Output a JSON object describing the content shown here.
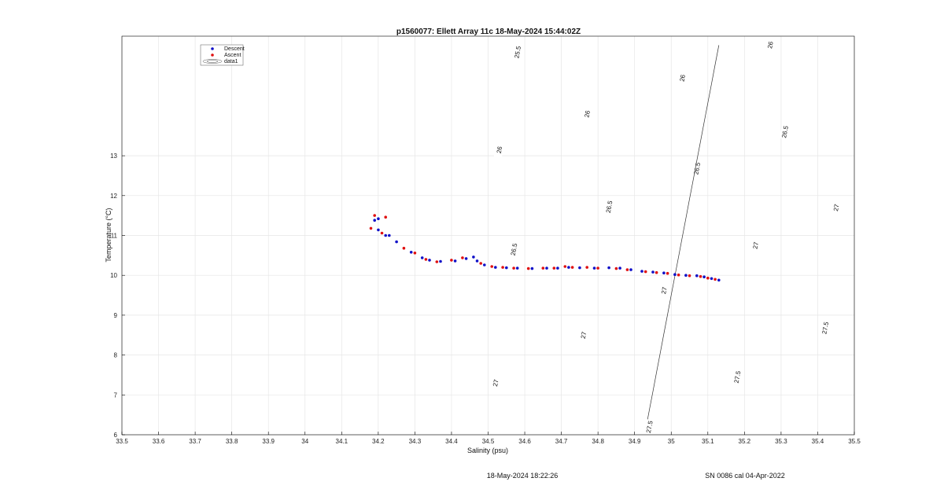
{
  "chart_data": {
    "type": "scatter",
    "title": "p1560077: Ellett Array 11c 18-May-2024 15:44:02Z",
    "xlabel": "Salinity (psu)",
    "ylabel": "Temperature (°C)",
    "xlim": [
      33.5,
      35.5
    ],
    "ylim": [
      6,
      16
    ],
    "x_ticks": [
      "33.5",
      "33.6",
      "33.7",
      "33.8",
      "33.9",
      "34",
      "34.1",
      "34.2",
      "34.3",
      "34.4",
      "34.5",
      "34.6",
      "34.7",
      "34.8",
      "34.9",
      "35",
      "35.1",
      "35.2",
      "35.3",
      "35.4",
      "35.5"
    ],
    "y_ticks": [
      "6",
      "7",
      "8",
      "9",
      "10",
      "11",
      "12",
      "13"
    ],
    "grid": true,
    "legend_position": "top-left",
    "legend": [
      "Descent",
      "Ascent",
      "data1"
    ],
    "colors": {
      "descent": "#1010c8",
      "ascent": "#e01010",
      "contour": "#333333",
      "grid": "#e6e6e6"
    },
    "series": [
      {
        "name": "Descent",
        "points": [
          [
            34.19,
            11.38
          ],
          [
            34.2,
            11.42
          ],
          [
            34.2,
            11.14
          ],
          [
            34.22,
            11.0
          ],
          [
            34.23,
            11.0
          ],
          [
            34.25,
            10.84
          ],
          [
            34.29,
            10.58
          ],
          [
            34.32,
            10.44
          ],
          [
            34.34,
            10.38
          ],
          [
            34.37,
            10.35
          ],
          [
            34.41,
            10.36
          ],
          [
            34.44,
            10.42
          ],
          [
            34.46,
            10.46
          ],
          [
            34.47,
            10.36
          ],
          [
            34.49,
            10.26
          ],
          [
            34.52,
            10.2
          ],
          [
            34.55,
            10.19
          ],
          [
            34.58,
            10.18
          ],
          [
            34.62,
            10.17
          ],
          [
            34.66,
            10.18
          ],
          [
            34.69,
            10.18
          ],
          [
            34.72,
            10.2
          ],
          [
            34.75,
            10.19
          ],
          [
            34.79,
            10.18
          ],
          [
            34.83,
            10.19
          ],
          [
            34.86,
            10.18
          ],
          [
            34.89,
            10.14
          ],
          [
            34.92,
            10.1
          ],
          [
            34.95,
            10.08
          ],
          [
            34.98,
            10.06
          ],
          [
            35.01,
            10.02
          ],
          [
            35.04,
            10.0
          ],
          [
            35.07,
            9.99
          ],
          [
            35.09,
            9.96
          ],
          [
            35.11,
            9.92
          ],
          [
            35.13,
            9.88
          ]
        ]
      },
      {
        "name": "Ascent",
        "points": [
          [
            34.18,
            11.18
          ],
          [
            34.19,
            11.5
          ],
          [
            34.21,
            11.06
          ],
          [
            34.22,
            11.46
          ],
          [
            34.27,
            10.68
          ],
          [
            34.3,
            10.56
          ],
          [
            34.33,
            10.4
          ],
          [
            34.36,
            10.34
          ],
          [
            34.4,
            10.38
          ],
          [
            34.43,
            10.44
          ],
          [
            34.48,
            10.3
          ],
          [
            34.51,
            10.22
          ],
          [
            34.54,
            10.2
          ],
          [
            34.57,
            10.18
          ],
          [
            34.61,
            10.17
          ],
          [
            34.65,
            10.18
          ],
          [
            34.68,
            10.18
          ],
          [
            34.71,
            10.22
          ],
          [
            34.73,
            10.2
          ],
          [
            34.77,
            10.2
          ],
          [
            34.8,
            10.18
          ],
          [
            34.85,
            10.17
          ],
          [
            34.88,
            10.14
          ],
          [
            34.93,
            10.09
          ],
          [
            34.96,
            10.07
          ],
          [
            34.99,
            10.05
          ],
          [
            35.02,
            10.01
          ],
          [
            35.05,
            9.99
          ],
          [
            35.08,
            9.97
          ],
          [
            35.1,
            9.93
          ],
          [
            35.12,
            9.9
          ]
        ]
      }
    ],
    "contours": [
      {
        "label": "25.5",
        "labels": [
          {
            "s": 34.58,
            "t": 15.6
          }
        ]
      },
      {
        "label": "26",
        "labels": [
          {
            "s": 34.53,
            "t": 13.15
          },
          {
            "s": 34.77,
            "t": 14.05
          },
          {
            "s": 35.03,
            "t": 14.95
          },
          {
            "s": 35.27,
            "t": 15.78
          }
        ]
      },
      {
        "label": "26.5",
        "labels": [
          {
            "s": 34.57,
            "t": 10.65
          },
          {
            "s": 34.83,
            "t": 11.72
          },
          {
            "s": 35.07,
            "t": 12.68
          },
          {
            "s": 35.31,
            "t": 13.6
          }
        ]
      },
      {
        "label": "27",
        "labels": [
          {
            "s": 34.52,
            "t": 7.3
          },
          {
            "s": 34.76,
            "t": 8.5
          },
          {
            "s": 34.98,
            "t": 9.62
          },
          {
            "s": 35.23,
            "t": 10.75
          },
          {
            "s": 35.45,
            "t": 11.7
          }
        ]
      },
      {
        "label": "27.5",
        "labels": [
          {
            "s": 34.94,
            "t": 6.2
          },
          {
            "s": 35.18,
            "t": 7.45
          },
          {
            "s": 35.42,
            "t": 8.68
          }
        ]
      }
    ]
  },
  "footer": {
    "datetime": "18-May-2024 18:22:26",
    "serial": "SN 0086 cal 04-Apr-2022"
  }
}
